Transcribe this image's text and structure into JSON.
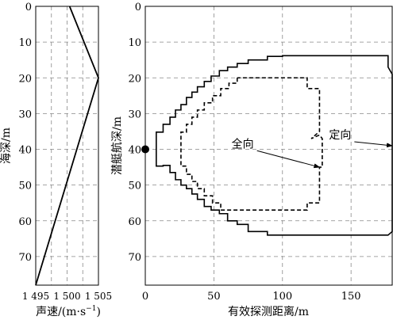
{
  "chart_data": [
    {
      "type": "line",
      "xlabel": "声速/(m·s",
      "xlabel_sup": "−1",
      "xlabel_tail": ")",
      "ylabel": "海深/m",
      "xlim": [
        1495,
        1505
      ],
      "ylim": [
        0,
        78
      ],
      "y_inverted": true,
      "xticks": [
        1495,
        1500,
        1505
      ],
      "xtick_labels": [
        "1 495",
        "1 500",
        "1 505"
      ],
      "yticks": [
        0,
        10,
        20,
        30,
        40,
        50,
        60,
        70
      ],
      "x_grid": [
        1497.5,
        1500,
        1502.5,
        1505
      ],
      "y_grid": [
        10,
        20,
        30,
        40,
        50,
        60,
        70
      ],
      "grid": true,
      "series": [
        {
          "x": [
            1500.4,
            1505,
            1495
          ],
          "y": [
            0,
            20,
            78
          ]
        }
      ]
    },
    {
      "type": "line",
      "xlabel": "有效探测距离/m",
      "ylabel": "潜艇航深/m",
      "xlim": [
        0,
        180
      ],
      "ylim": [
        0,
        78
      ],
      "y_inverted": true,
      "xticks": [
        0,
        50,
        100,
        150
      ],
      "yticks": [
        0,
        10,
        20,
        30,
        40,
        50,
        60,
        70
      ],
      "x_grid": [
        50,
        100,
        150
      ],
      "y_grid": [
        10,
        20,
        30,
        40,
        50,
        60,
        70
      ],
      "grid": true,
      "marker": {
        "x": 0,
        "y": 40
      },
      "series": [
        {
          "name": "定向",
          "style": "solid",
          "points": [
            [
              8,
              35
            ],
            [
              8,
              35.2
            ],
            [
              13,
              35.2
            ],
            [
              13,
              33
            ],
            [
              18,
              33
            ],
            [
              18,
              31
            ],
            [
              22,
              31
            ],
            [
              22,
              29
            ],
            [
              26,
              29
            ],
            [
              26,
              27.5
            ],
            [
              30,
              27.5
            ],
            [
              30,
              25.5
            ],
            [
              34,
              25.5
            ],
            [
              34,
              24
            ],
            [
              38,
              24
            ],
            [
              38,
              22.5
            ],
            [
              43,
              22.5
            ],
            [
              43,
              21
            ],
            [
              48,
              21
            ],
            [
              48,
              19.5
            ],
            [
              54,
              19.5
            ],
            [
              54,
              18
            ],
            [
              60,
              18
            ],
            [
              60,
              17
            ],
            [
              67,
              17
            ],
            [
              67,
              16
            ],
            [
              75,
              16
            ],
            [
              75,
              15
            ],
            [
              89,
              15
            ],
            [
              89,
              14
            ],
            [
              100,
              14
            ],
            [
              100,
              13.8
            ],
            [
              177,
              13.8
            ],
            [
              177,
              17
            ],
            [
              180,
              19
            ],
            [
              180,
              63
            ],
            [
              177,
              64
            ],
            [
              100,
              64
            ],
            [
              89,
              64
            ],
            [
              89,
              63
            ],
            [
              75,
              63
            ],
            [
              75,
              61
            ],
            [
              67,
              61
            ],
            [
              67,
              60
            ],
            [
              60,
              60
            ],
            [
              60,
              58
            ],
            [
              54,
              58
            ],
            [
              54,
              57
            ],
            [
              48,
              57
            ],
            [
              48,
              56
            ],
            [
              43,
              56
            ],
            [
              43,
              54
            ],
            [
              38,
              54
            ],
            [
              38,
              52.5
            ],
            [
              34,
              52.5
            ],
            [
              34,
              51
            ],
            [
              30,
              51
            ],
            [
              30,
              50
            ],
            [
              26,
              50
            ],
            [
              26,
              48.5
            ],
            [
              22,
              48.5
            ],
            [
              22,
              46.5
            ],
            [
              18,
              46.5
            ],
            [
              18,
              44.5
            ],
            [
              13,
              44.5
            ],
            [
              13,
              44.7
            ],
            [
              8,
              44.7
            ],
            [
              8,
              35
            ]
          ]
        },
        {
          "name": "全向",
          "style": "dashed",
          "points": [
            [
              67,
              20
            ],
            [
              67,
              21.5
            ],
            [
              61,
              21.5
            ],
            [
              61,
              23
            ],
            [
              55,
              23
            ],
            [
              55,
              25
            ],
            [
              49,
              25
            ],
            [
              49,
              27
            ],
            [
              43,
              27
            ],
            [
              43,
              29
            ],
            [
              38,
              29
            ],
            [
              38,
              31
            ],
            [
              34,
              31
            ],
            [
              34,
              33
            ],
            [
              30,
              33
            ],
            [
              30,
              35.2
            ],
            [
              26,
              35.2
            ],
            [
              26,
              44.7
            ],
            [
              30,
              44.7
            ],
            [
              30,
              47
            ],
            [
              34,
              47
            ],
            [
              34,
              49
            ],
            [
              38,
              49
            ],
            [
              38,
              51
            ],
            [
              43,
              51
            ],
            [
              43,
              53
            ],
            [
              49,
              53
            ],
            [
              49,
              55
            ],
            [
              55,
              55
            ],
            [
              55,
              57
            ],
            [
              67,
              57
            ],
            [
              67,
              57
            ],
            [
              118,
              57
            ],
            [
              118,
              55
            ],
            [
              127,
              55
            ],
            [
              127,
              45
            ],
            [
              129,
              45
            ],
            [
              129,
              37
            ],
            [
              127,
              36
            ],
            [
              121,
              37
            ],
            [
              127,
              35
            ],
            [
              127,
              23
            ],
            [
              118,
              23
            ],
            [
              118,
              20
            ],
            [
              67,
              20
            ]
          ]
        }
      ],
      "annotations": [
        {
          "text": "全向",
          "text_at": [
            71,
            39.5
          ],
          "arrow_to": [
            127,
            45
          ]
        },
        {
          "text": "定向",
          "text_at": [
            142,
            37
          ],
          "arrow_to": [
            180,
            39
          ]
        }
      ]
    }
  ]
}
